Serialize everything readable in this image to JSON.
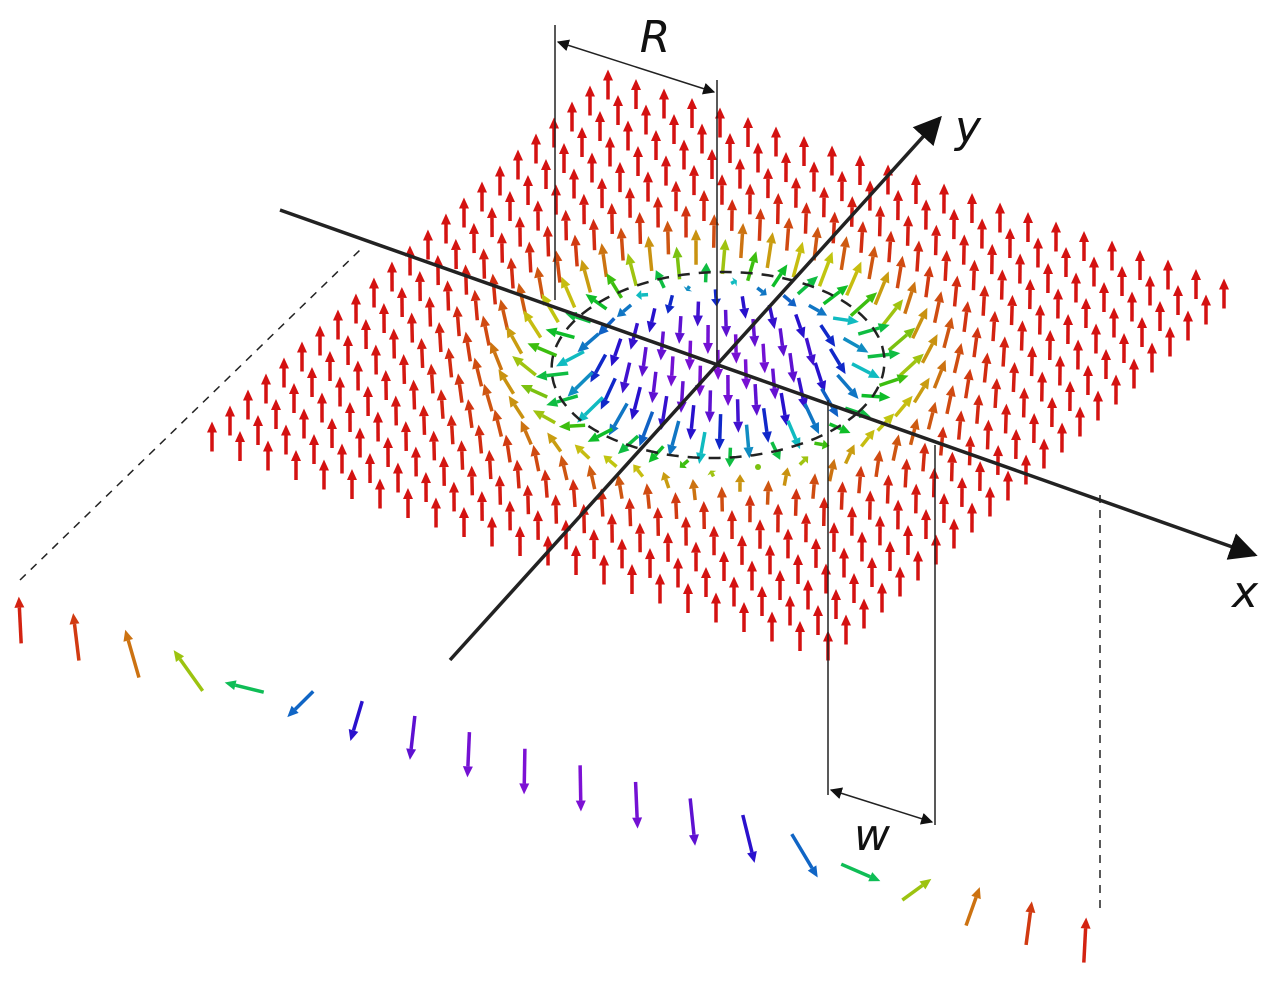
{
  "labels": {
    "R": "R",
    "y": "y",
    "x": "x",
    "w": "w"
  }
}
